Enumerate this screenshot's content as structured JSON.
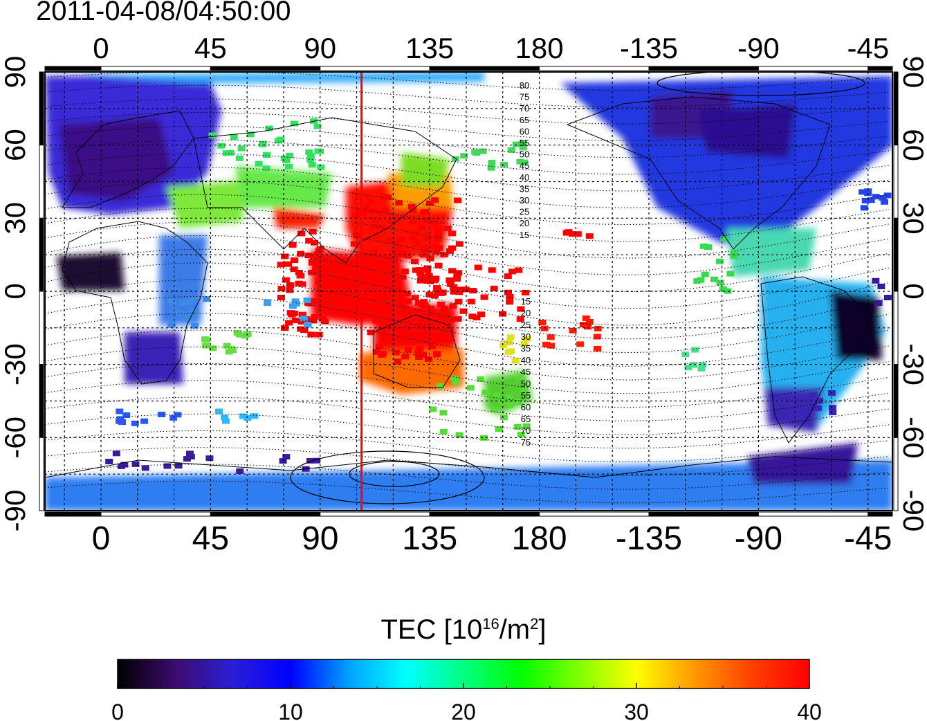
{
  "timestamp": "2011-04-08/04:50:00",
  "map": {
    "lon_ticks": [
      "0",
      "45",
      "90",
      "135",
      "180",
      "-135",
      "-90",
      "-45"
    ],
    "lat_ticks": [
      "90",
      "60",
      "30",
      "0",
      "-30",
      "-60",
      "-90"
    ],
    "lon_range": [
      -23,
      325
    ],
    "lat_range": [
      -90,
      90
    ],
    "grid": "dotted 15 deg",
    "red_meridian_lon": 107,
    "contour_labels_north": [
      "80",
      "75",
      "70",
      "65",
      "60",
      "55",
      "50",
      "45",
      "40",
      "35",
      "30",
      "25",
      "20",
      "15"
    ],
    "contour_labels_south": [
      "15",
      "20",
      "25",
      "30",
      "35",
      "40",
      "45",
      "50",
      "55",
      "60",
      "65",
      "70",
      "75"
    ]
  },
  "colorbar": {
    "title_prefix": "TEC  [10",
    "title_exp": "16",
    "title_mid": "/m",
    "title_exp2": "2",
    "title_suffix": "]",
    "ticks": [
      "0",
      "10",
      "20",
      "30",
      "40"
    ],
    "range": [
      0,
      40
    ],
    "colormap": [
      "#000000",
      "#3c0b6e",
      "#2b1fd6",
      "#0000ff",
      "#00a0ff",
      "#00ffff",
      "#00ff7f",
      "#00ff00",
      "#7fff00",
      "#ffff00",
      "#ff9900",
      "#ff4000",
      "#ff0000"
    ]
  }
}
